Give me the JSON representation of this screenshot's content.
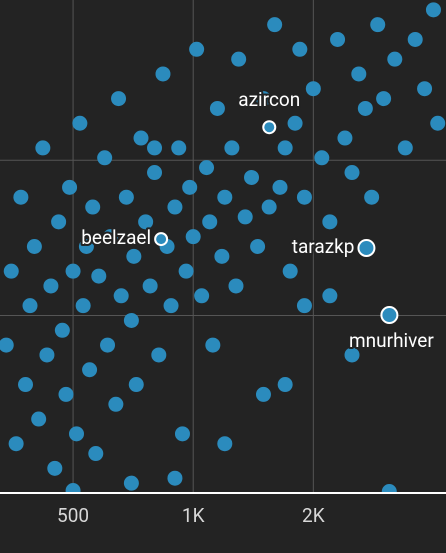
{
  "chart_data": {
    "type": "scatter",
    "xscale": "log",
    "xlim": [
      328,
      4300
    ],
    "xticks": [
      500,
      {
        "value": 1000,
        "label": "1K"
      },
      {
        "value": 2000,
        "label": "2K"
      }
    ],
    "ylim": [
      0,
      100
    ],
    "ygrid": [
      36,
      67.5
    ],
    "grid": true,
    "color": "#2b8bbd",
    "x": [
      340,
      350,
      360,
      370,
      380,
      390,
      400,
      410,
      420,
      430,
      440,
      450,
      460,
      470,
      480,
      490,
      500,
      510,
      520,
      530,
      540,
      550,
      560,
      570,
      580,
      600,
      610,
      620,
      640,
      650,
      660,
      680,
      700,
      710,
      720,
      740,
      760,
      780,
      800,
      820,
      840,
      860,
      880,
      900,
      920,
      940,
      960,
      980,
      1000,
      1020,
      1050,
      1080,
      1100,
      1120,
      1150,
      1180,
      1200,
      1250,
      1280,
      1300,
      1350,
      1400,
      1450,
      1500,
      1550,
      1600,
      1650,
      1700,
      1750,
      1800,
      1850,
      1900,
      2000,
      2100,
      2200,
      2300,
      2400,
      2500,
      2600,
      2700,
      2800,
      2900,
      3000,
      3200,
      3400,
      3600,
      3800,
      4000,
      4100,
      2200,
      1900,
      1500,
      1200,
      900,
      700,
      500,
      1700,
      2500,
      3100,
      800
    ],
    "y": [
      30,
      45,
      10,
      60,
      22,
      38,
      50,
      15,
      70,
      28,
      42,
      5,
      55,
      33,
      20,
      62,
      45,
      12,
      75,
      38,
      50,
      25,
      58,
      8,
      44,
      68,
      30,
      52,
      18,
      80,
      40,
      60,
      35,
      48,
      22,
      72,
      55,
      42,
      65,
      28,
      85,
      50,
      38,
      58,
      70,
      12,
      45,
      62,
      52,
      90,
      40,
      66,
      55,
      30,
      78,
      48,
      60,
      70,
      42,
      88,
      56,
      64,
      50,
      80,
      58,
      95,
      62,
      70,
      45,
      75,
      90,
      60,
      82,
      68,
      55,
      92,
      72,
      65,
      85,
      78,
      60,
      95,
      80,
      88,
      70,
      92,
      82,
      98,
      75,
      40,
      38,
      20,
      10,
      3,
      2,
      0.5,
      22,
      28,
      0.3,
      70
    ],
    "highlight_stroke": "#ffffff",
    "labeled": [
      {
        "label": "azircon",
        "x": 1551,
        "y": 74.2
      },
      {
        "label": "beelzael",
        "x": 831,
        "y": 51.5
      },
      {
        "label": "tarazkp",
        "x": 2717,
        "y": 49.7
      },
      {
        "label": "mnurhiver",
        "x": 3102,
        "y": 36.1
      }
    ]
  }
}
